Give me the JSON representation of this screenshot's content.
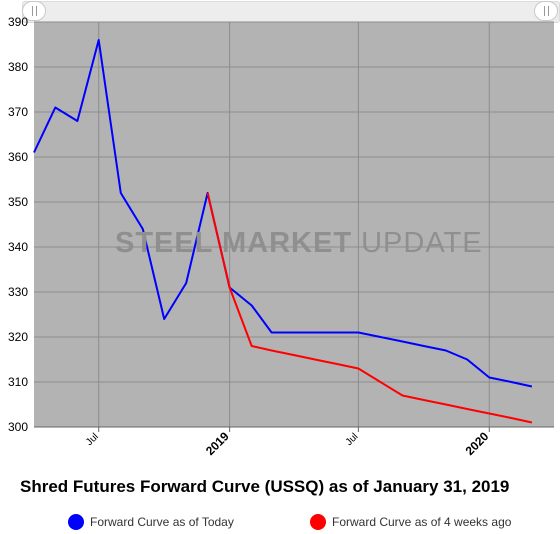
{
  "chart_data": {
    "type": "line",
    "title": "Shred Futures Forward Curve (USSQ) as of January 31, 2019",
    "y_axis": {
      "min": 300,
      "max": 390,
      "ticks": [
        "300",
        "310",
        "320",
        "330",
        "340",
        "350",
        "360",
        "370",
        "380",
        "390"
      ]
    },
    "x_axis": {
      "min": "2018-04-01",
      "max": "2020-04-01",
      "ticks": [
        {
          "date": "2018-07-01",
          "label": "Jul",
          "major": false
        },
        {
          "date": "2019-01-01",
          "label": "2019",
          "major": true
        },
        {
          "date": "2019-07-01",
          "label": "Jul",
          "major": false
        },
        {
          "date": "2020-01-01",
          "label": "2020",
          "major": true
        }
      ]
    },
    "grid": true,
    "background_color": "#b3b3b3",
    "series": [
      {
        "name": "Forward Curve as of Today",
        "color": "#0000ff",
        "points": [
          [
            "2018-04-01",
            361
          ],
          [
            "2018-05-01",
            371
          ],
          [
            "2018-06-01",
            368
          ],
          [
            "2018-07-01",
            386
          ],
          [
            "2018-08-01",
            352
          ],
          [
            "2018-09-01",
            344
          ],
          [
            "2018-10-01",
            324
          ],
          [
            "2018-11-01",
            332
          ],
          [
            "2018-12-01",
            352
          ],
          [
            "2019-01-01",
            331
          ],
          [
            "2019-02-01",
            327
          ],
          [
            "2019-03-01",
            321
          ],
          [
            "2019-04-01",
            321
          ],
          [
            "2019-05-01",
            321
          ],
          [
            "2019-06-01",
            321
          ],
          [
            "2019-07-01",
            321
          ],
          [
            "2019-08-01",
            320
          ],
          [
            "2019-09-01",
            319
          ],
          [
            "2019-10-01",
            318
          ],
          [
            "2019-11-01",
            317
          ],
          [
            "2019-12-01",
            315
          ],
          [
            "2020-01-01",
            311
          ],
          [
            "2020-02-01",
            310
          ],
          [
            "2020-03-01",
            309
          ]
        ]
      },
      {
        "name": "Forward Curve as of 4 weeks ago",
        "color": "#ff0000",
        "points": [
          [
            "2018-12-01",
            352
          ],
          [
            "2019-01-01",
            331
          ],
          [
            "2019-02-01",
            318
          ],
          [
            "2019-03-01",
            317
          ],
          [
            "2019-04-01",
            316
          ],
          [
            "2019-05-01",
            315
          ],
          [
            "2019-06-01",
            314
          ],
          [
            "2019-07-01",
            313
          ],
          [
            "2019-08-01",
            310
          ],
          [
            "2019-09-01",
            307
          ],
          [
            "2019-10-01",
            306
          ],
          [
            "2019-11-01",
            305
          ],
          [
            "2019-12-01",
            304
          ],
          [
            "2020-01-01",
            303
          ],
          [
            "2020-02-01",
            302
          ],
          [
            "2020-03-01",
            301
          ]
        ]
      }
    ],
    "legend": {
      "position": "bottom"
    }
  },
  "watermark": {
    "brand": "STEEL MARKET",
    "sub": "UPDATE"
  },
  "scrollbar": {
    "left_handle": "scroll-left",
    "right_handle": "scroll-right"
  }
}
